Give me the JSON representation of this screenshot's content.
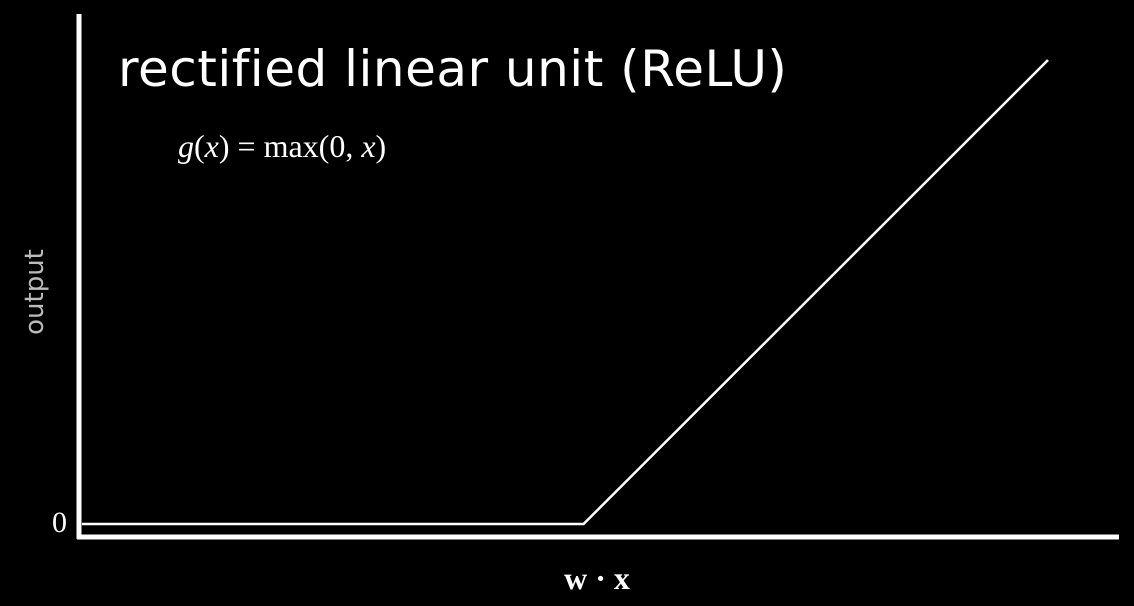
{
  "chart_data": {
    "type": "line",
    "title": "rectified linear unit (ReLU)",
    "subtitle": "g(x) = max(0, x)",
    "xlabel": "w · x",
    "ylabel": "output",
    "y_tick_labels": [
      "0"
    ],
    "grid": false,
    "legend": "none",
    "line_color": "#ffffff",
    "background": "#000000",
    "xlim": [
      -1.08,
      1
    ],
    "ylim": [
      0,
      1
    ],
    "series": [
      {
        "x": [
          -1.08,
          0,
          1
        ],
        "y": [
          0,
          0,
          1
        ]
      }
    ]
  }
}
